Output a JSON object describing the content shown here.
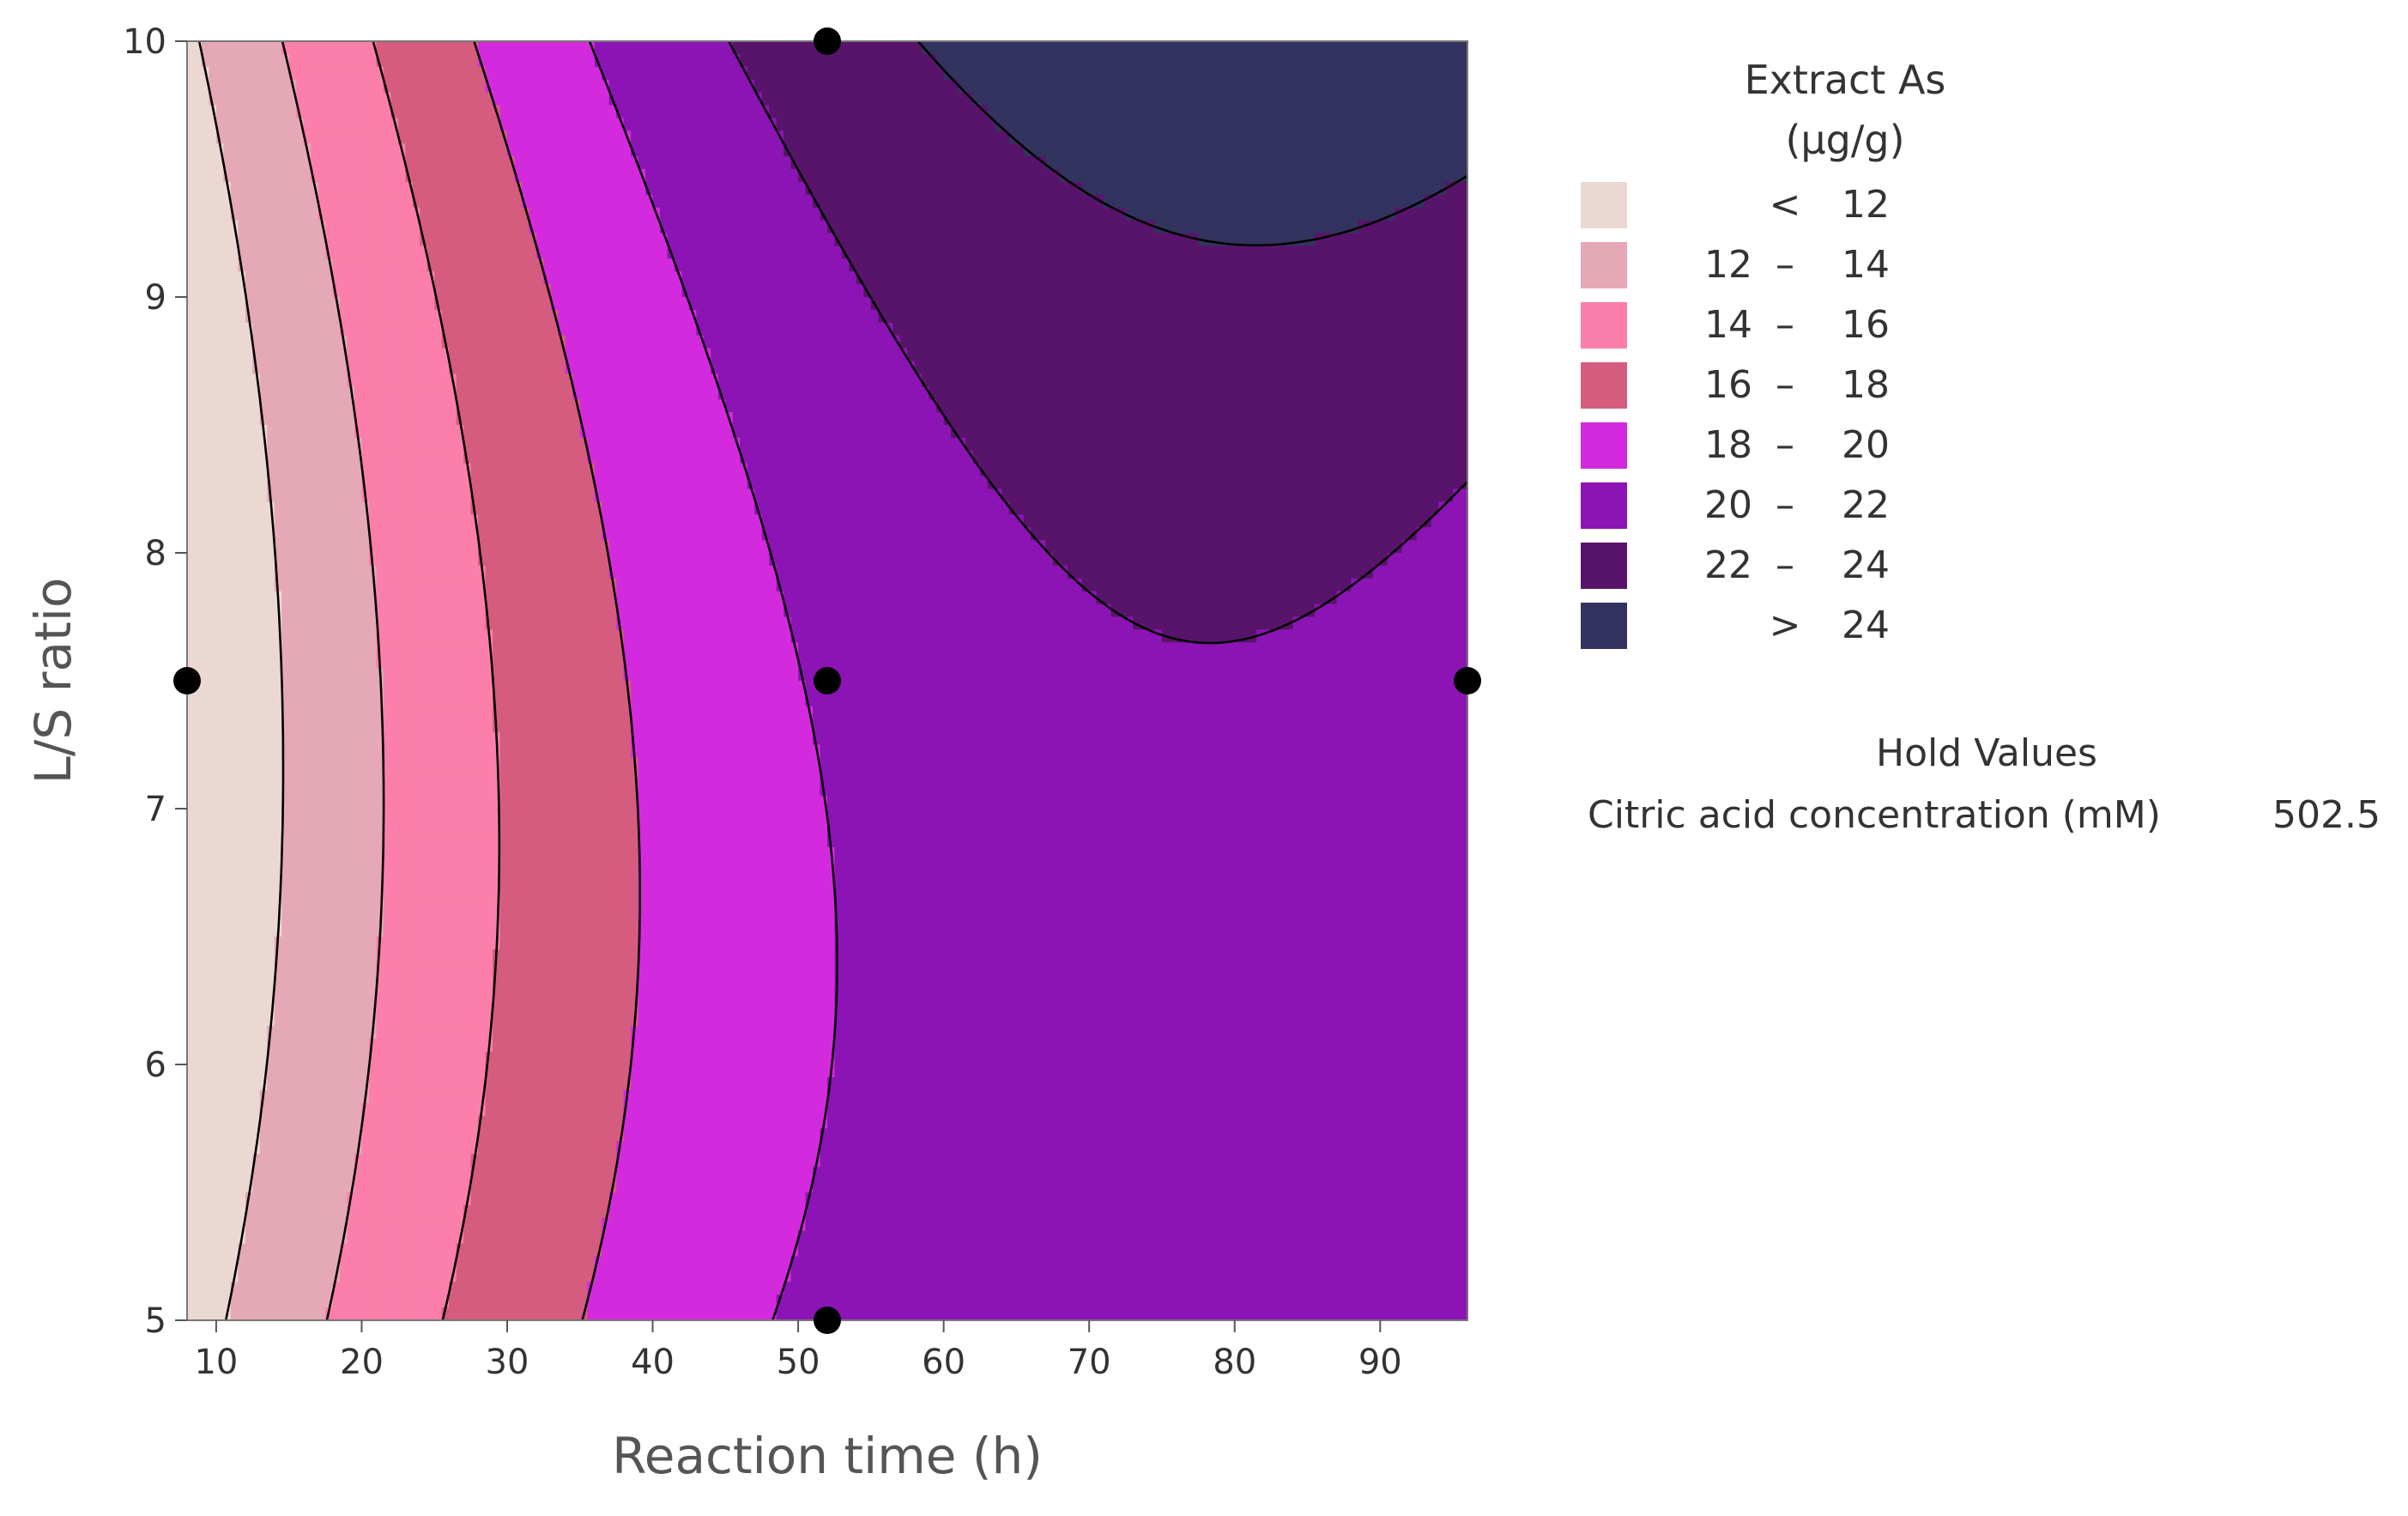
{
  "chart_data": {
    "type": "contour",
    "xlabel": "Reaction time (h)",
    "ylabel": "L/S ratio",
    "xlim": [
      8,
      96
    ],
    "ylim": [
      5,
      10
    ],
    "xticks": [
      "10",
      "20",
      "30",
      "40",
      "50",
      "60",
      "70",
      "80",
      "90"
    ],
    "yticks": [
      "5",
      "6",
      "7",
      "8",
      "9",
      "10"
    ],
    "legend": {
      "title_line1": "Extract As",
      "title_line2": "(µg/g)",
      "bins": [
        {
          "low": "",
          "sep": "<",
          "high": "12",
          "color": "#ecd8d2"
        },
        {
          "low": "12",
          "sep": "–",
          "high": "14",
          "color": "#e5a8b6"
        },
        {
          "low": "14",
          "sep": "–",
          "high": "16",
          "color": "#fc7fab"
        },
        {
          "low": "16",
          "sep": "–",
          "high": "18",
          "color": "#d55c7e"
        },
        {
          "low": "18",
          "sep": "–",
          "high": "20",
          "color": "#d42ade"
        },
        {
          "low": "20",
          "sep": "–",
          "high": "22",
          "color": "#8c14b4"
        },
        {
          "low": "22",
          "sep": "–",
          "high": "24",
          "color": "#58146a"
        },
        {
          "low": "",
          "sep": ">",
          "high": "24",
          "color": "#33335f"
        }
      ]
    },
    "design_points": [
      {
        "x": 8,
        "y": 7.5
      },
      {
        "x": 52,
        "y": 7.5
      },
      {
        "x": 96,
        "y": 7.5
      },
      {
        "x": 52,
        "y": 10
      },
      {
        "x": 52,
        "y": 5
      }
    ],
    "contour_levels": [
      12,
      14,
      16,
      18,
      20,
      22,
      24
    ]
  },
  "hold_values": {
    "title": "Hold Values",
    "name": "Citric acid concentration (mM)",
    "value": "502.5"
  }
}
